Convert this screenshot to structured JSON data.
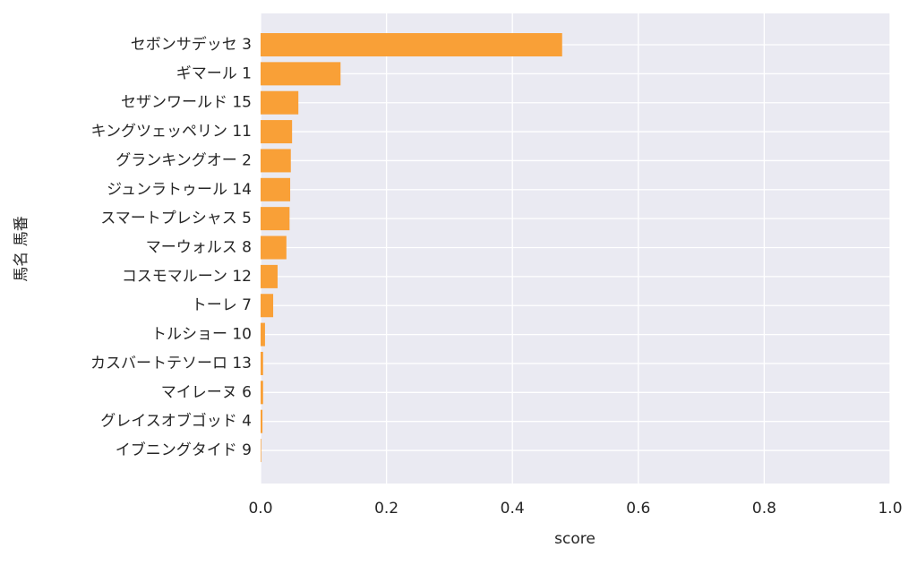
{
  "chart_data": {
    "type": "barh",
    "xlabel": "score",
    "ylabel": "馬名 馬番",
    "categories": [
      "セボンサデッセ 3",
      "ギマール 1",
      "セザンワールド 15",
      "キングツェッペリン 11",
      "グランキングオー 2",
      "ジュンラトゥール 14",
      "スマートプレシャス 5",
      "マーウォルス 8",
      "コスモマルーン 12",
      "トーレ 7",
      "トルショー 10",
      "カスバートテソーロ 13",
      "マイレーヌ 6",
      "グレイスオブゴッド 4",
      "イブニングタイド 9"
    ],
    "values": [
      0.479,
      0.127,
      0.06,
      0.05,
      0.048,
      0.047,
      0.046,
      0.041,
      0.027,
      0.02,
      0.007,
      0.004,
      0.004,
      0.003,
      0.001
    ],
    "color": "#f9a037",
    "xlim": [
      0,
      1
    ],
    "xticks": [
      {
        "value": 0,
        "label": "0.0"
      },
      0.2,
      0.4,
      0.6,
      0.8,
      {
        "value": 1,
        "label": "1.0"
      }
    ],
    "grid": true
  }
}
